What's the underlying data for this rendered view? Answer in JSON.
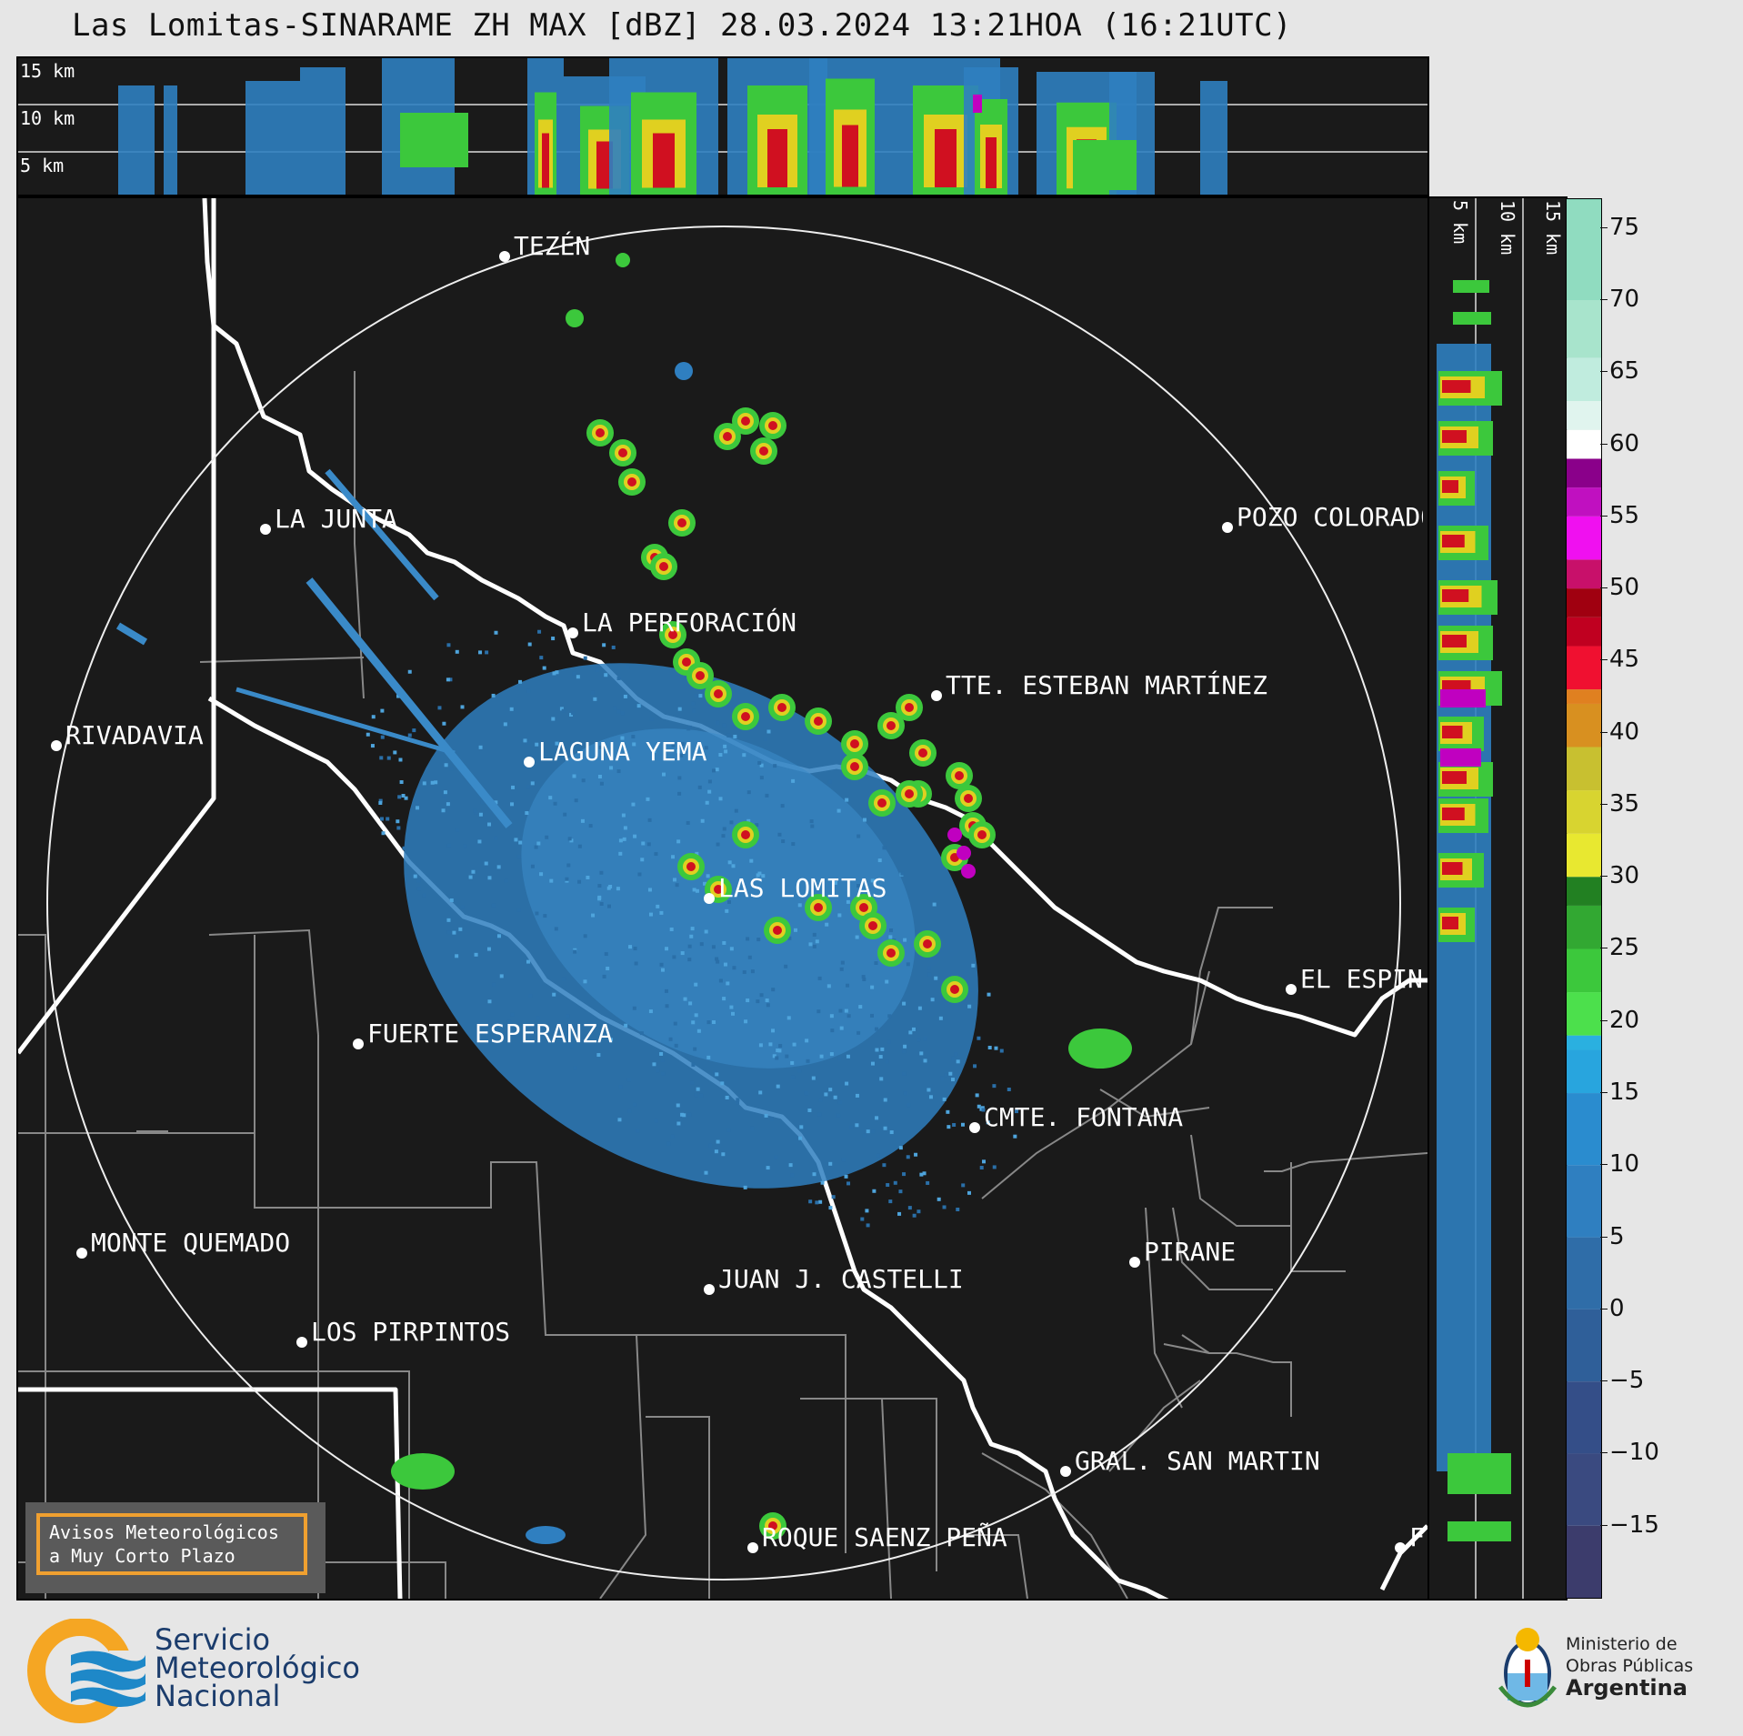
{
  "title": "Las Lomitas-SINARAME ZH MAX [dBZ] 28.03.2024 13:21HOA (16:21UTC)",
  "top_panel": {
    "height_labels": [
      "15 km",
      "10 km",
      "5 km"
    ]
  },
  "side_panel": {
    "height_labels": [
      "5 km",
      "10 km",
      "15 km"
    ]
  },
  "colorbar": {
    "unit": "dBZ",
    "ticks": [
      "75",
      "70",
      "65",
      "60",
      "55",
      "50",
      "45",
      "40",
      "35",
      "30",
      "25",
      "20",
      "15",
      "10",
      "5",
      "0",
      "−5",
      "−10",
      "−15"
    ],
    "range": [
      -20,
      77
    ]
  },
  "places": [
    {
      "name": "TEZÉN"
    },
    {
      "name": "LA JUNTA"
    },
    {
      "name": "POZO COLORADO"
    },
    {
      "name": "LA PERFORACIÓN"
    },
    {
      "name": "TTE. ESTEBAN MARTÍNEZ"
    },
    {
      "name": "RIVADAVIA"
    },
    {
      "name": "LAGUNA YEMA"
    },
    {
      "name": "LAS LOMITAS"
    },
    {
      "name": "EL ESPINILLO"
    },
    {
      "name": "FUERTE ESPERANZA"
    },
    {
      "name": "CMTE. FONTANA"
    },
    {
      "name": "PIRANE"
    },
    {
      "name": "MONTE QUEMADO"
    },
    {
      "name": "JUAN J. CASTELLI"
    },
    {
      "name": "LOS PIRPINTOS"
    },
    {
      "name": "GRAL. SAN MARTIN"
    },
    {
      "name": "ROQUE SAENZ PEÑA"
    },
    {
      "name": "FO"
    }
  ],
  "warning_button": {
    "line1": "Avisos Meteorológicos",
    "line2": "a Muy Corto Plazo"
  },
  "footer": {
    "smn": [
      "Servicio",
      "Meteorológico",
      "Nacional"
    ],
    "ministry": [
      "Ministerio de",
      "Obras Públicas",
      "Argentina"
    ]
  },
  "colors": {
    "background": "#1a1a1a",
    "page": "#e6e6e6",
    "echo_blue": "#2f7fc0",
    "echo_green": "#3cc83c",
    "echo_yellow": "#e0d020",
    "echo_red": "#d01020",
    "echo_magenta": "#c000c0",
    "warning_border": "#f0a030",
    "smn_orange": "#f5a623",
    "smn_blue": "#1e88c8"
  }
}
